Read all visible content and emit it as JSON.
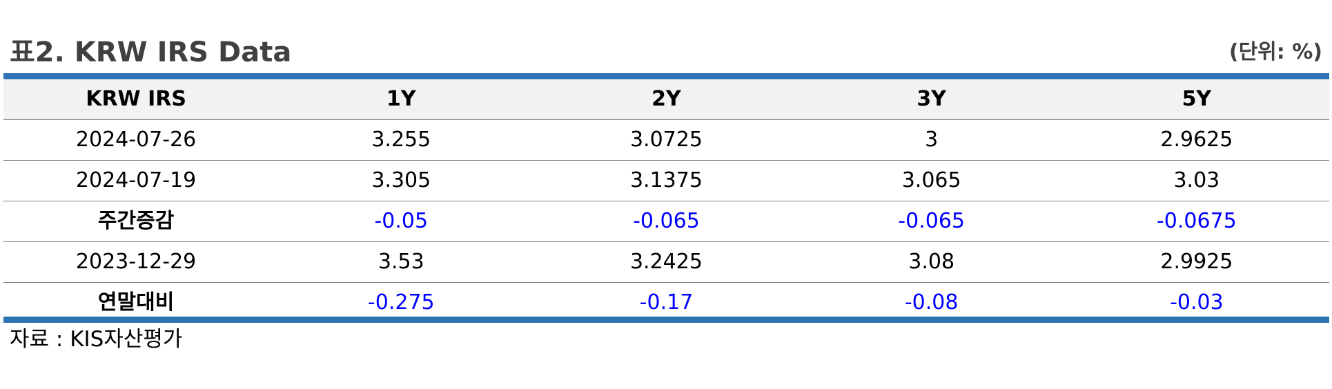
{
  "title": "표2. KRW IRS Data",
  "unit": "(단위: %)",
  "colors": {
    "accent_rule": "#2e74b5",
    "header_bg": "#f2f2f2",
    "change_value": "#0000ff",
    "title_text": "#404040"
  },
  "table": {
    "headers": [
      "KRW IRS",
      "1Y",
      "2Y",
      "3Y",
      "5Y"
    ],
    "rows": [
      {
        "label": "2024-07-26",
        "values": [
          "3.255",
          "3.0725",
          "3",
          "2.9625"
        ]
      },
      {
        "label": "2024-07-19",
        "values": [
          "3.305",
          "3.1375",
          "3.065",
          "3.03"
        ]
      },
      {
        "label": "주간증감",
        "values": [
          "-0.05",
          "-0.065",
          "-0.065",
          "-0.0675"
        ]
      },
      {
        "label": "2023-12-29",
        "values": [
          "3.53",
          "3.2425",
          "3.08",
          "2.9925"
        ]
      },
      {
        "label": "연말대비",
        "values": [
          "-0.275",
          "-0.17",
          "-0.08",
          "-0.03"
        ]
      }
    ]
  },
  "source": "자료 : KIS자산평가"
}
